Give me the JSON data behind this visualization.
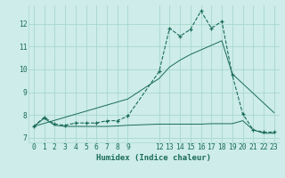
{
  "title": "",
  "xlabel": "Humidex (Indice chaleur)",
  "bg_color": "#cdecea",
  "grid_color": "#a8d8cc",
  "line_color": "#1a6b5a",
  "xlim": [
    -0.5,
    23.5
  ],
  "ylim": [
    6.8,
    12.8
  ],
  "yticks": [
    7,
    8,
    9,
    10,
    11,
    12
  ],
  "xticks": [
    0,
    1,
    2,
    3,
    4,
    5,
    6,
    7,
    8,
    9,
    12,
    13,
    14,
    15,
    16,
    17,
    18,
    19,
    20,
    21,
    22,
    23
  ],
  "line1_x": [
    0,
    1,
    2,
    3,
    4,
    5,
    6,
    7,
    8,
    9,
    12,
    13,
    14,
    15,
    16,
    17,
    18,
    19,
    20,
    21,
    22,
    23
  ],
  "line1_y": [
    7.5,
    7.9,
    7.6,
    7.55,
    7.65,
    7.65,
    7.65,
    7.75,
    7.75,
    7.95,
    9.9,
    11.8,
    11.45,
    11.75,
    12.55,
    11.8,
    12.1,
    9.75,
    8.05,
    7.35,
    7.25,
    7.25
  ],
  "line2_x": [
    0,
    1,
    2,
    3,
    4,
    5,
    6,
    7,
    8,
    9,
    12,
    13,
    14,
    15,
    16,
    17,
    18,
    19,
    20,
    21,
    22,
    23
  ],
  "line2_y": [
    7.5,
    7.85,
    7.55,
    7.5,
    7.5,
    7.5,
    7.5,
    7.5,
    7.52,
    7.55,
    7.6,
    7.6,
    7.6,
    7.6,
    7.6,
    7.62,
    7.62,
    7.62,
    7.75,
    7.35,
    7.2,
    7.2
  ],
  "line3_x": [
    0,
    9,
    12,
    13,
    14,
    15,
    16,
    17,
    18,
    19,
    23
  ],
  "line3_y": [
    7.5,
    8.7,
    9.6,
    10.1,
    10.4,
    10.65,
    10.85,
    11.05,
    11.25,
    9.8,
    8.1
  ]
}
